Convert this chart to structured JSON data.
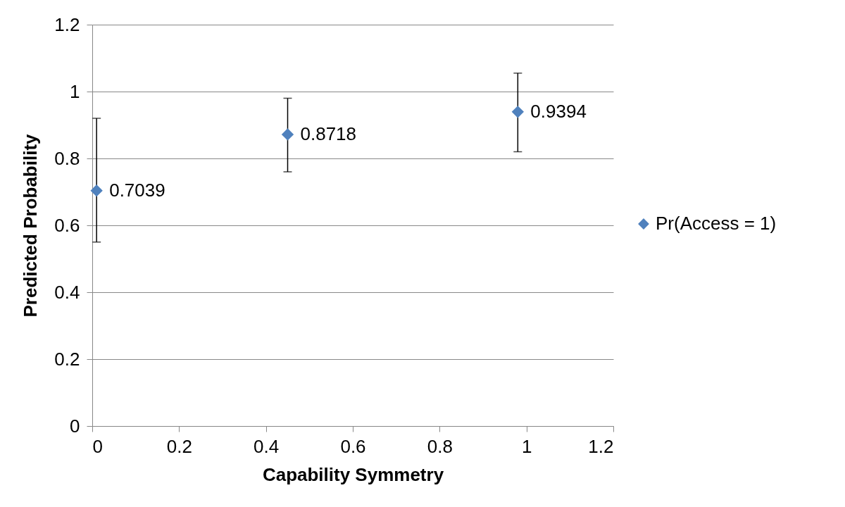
{
  "chart_data": {
    "type": "scatter",
    "xlabel": "Capability Symmetry",
    "ylabel": "Predicted  Probability",
    "x": [
      0.01,
      0.45,
      0.98
    ],
    "series": [
      {
        "name": "Pr(Access = 1)",
        "color": "#4f81bd",
        "values": [
          0.7039,
          0.8718,
          0.9394
        ],
        "errors": [
          [
            0.55,
            0.92
          ],
          [
            0.76,
            0.98
          ],
          [
            0.82,
            1.055
          ]
        ]
      }
    ],
    "data_labels": true,
    "marker": "diamond",
    "grid": "y",
    "legend": "right",
    "xlim": [
      0,
      1.2
    ],
    "xticks": [
      0,
      0.2,
      0.4,
      0.6,
      0.8,
      1,
      1.2
    ],
    "ylim": [
      0,
      1.2
    ],
    "yticks": [
      0,
      0.2,
      0.4,
      0.6,
      0.8,
      1,
      1.2
    ]
  }
}
